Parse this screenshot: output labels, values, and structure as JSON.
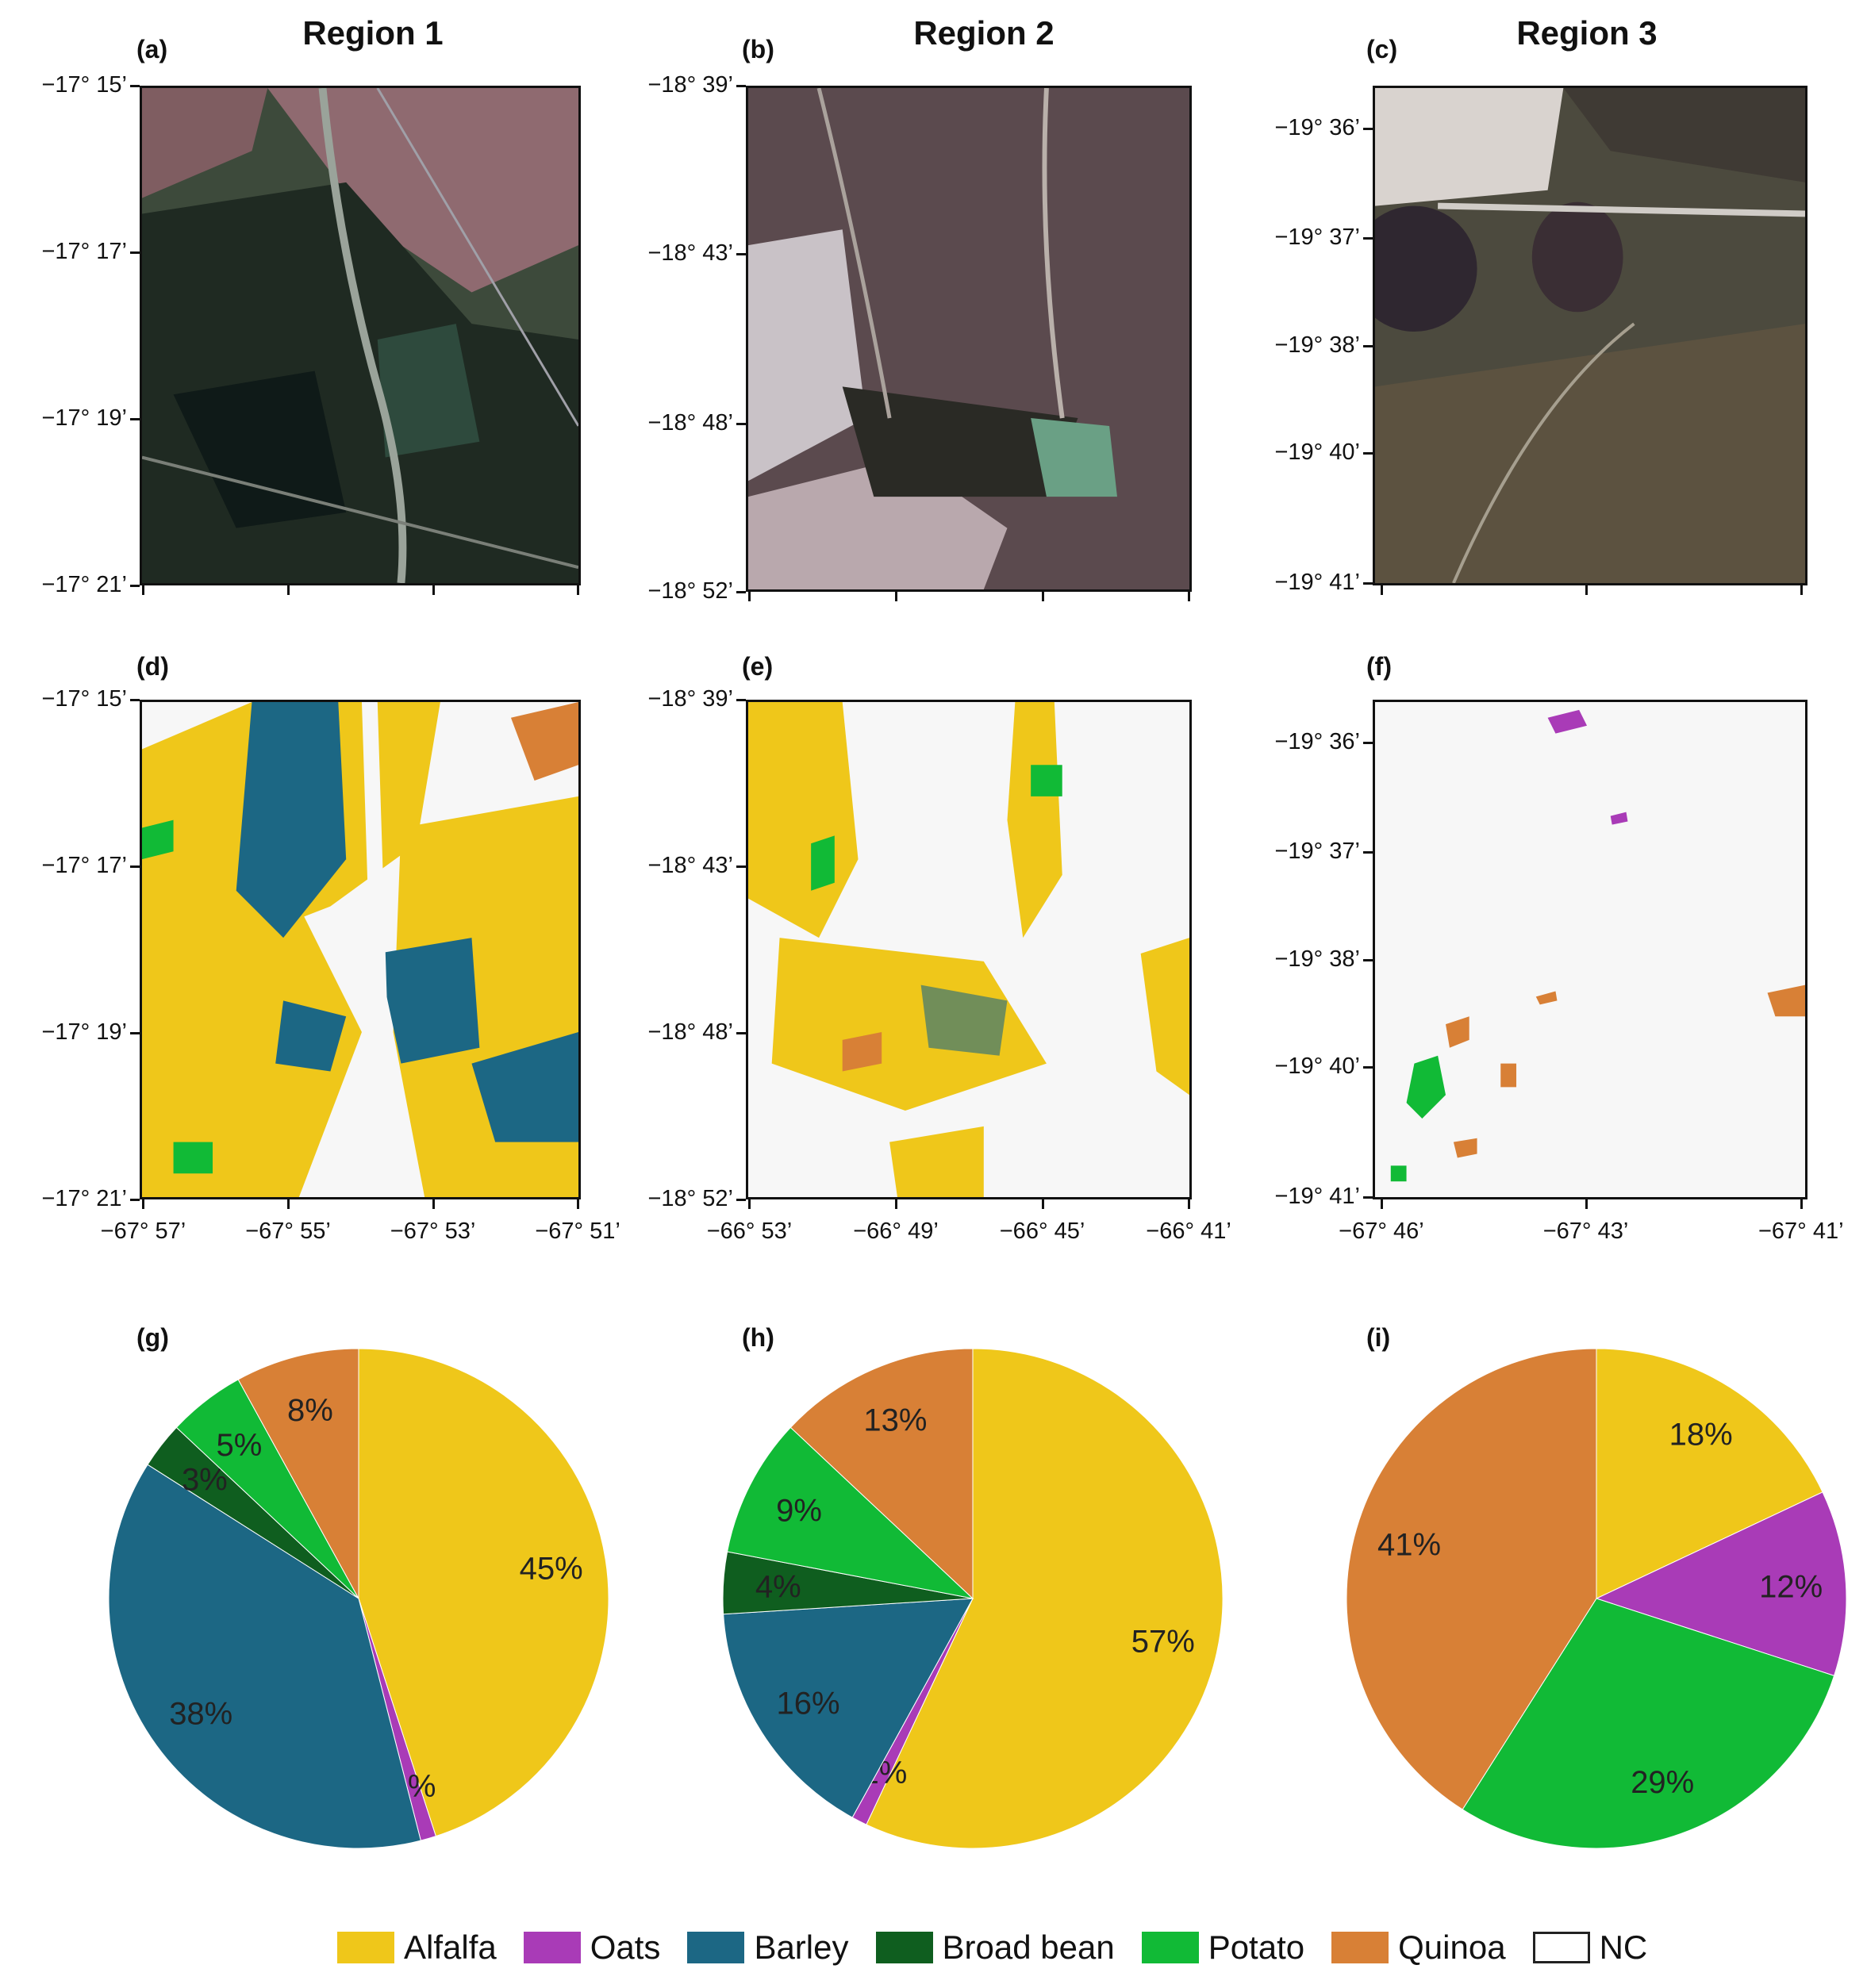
{
  "regions": [
    "Region 1",
    "Region 2",
    "Region 3"
  ],
  "panel_labels": [
    "(a)",
    "(b)",
    "(c)",
    "(d)",
    "(e)",
    "(f)",
    "(g)",
    "(h)",
    "(i)"
  ],
  "maps": [
    {
      "lat_ticks": [
        "−17° 15’",
        "−17° 17’",
        "−17° 19’",
        "−17° 21’"
      ],
      "lon_ticks": [
        "−67° 57’",
        "−67° 55’",
        "−67° 53’",
        "−67° 51’"
      ]
    },
    {
      "lat_ticks": [
        "−18° 39’",
        "−18° 43’",
        "−18° 48’",
        "−18° 52’"
      ],
      "lon_ticks": [
        "−66° 53’",
        "−66° 49’",
        "−66° 45’",
        "−66° 41’"
      ]
    },
    {
      "lat_ticks": [
        "−19° 36’",
        "−19° 37’",
        "−19° 38’",
        "−19° 40’",
        "−19° 41’"
      ],
      "lon_ticks": [
        "−67° 46’",
        "−67° 43’",
        "−67° 41’"
      ]
    }
  ],
  "legend": [
    {
      "name": "Alfalfa",
      "color": "#EFC71A"
    },
    {
      "name": "Oats",
      "color": "#A93BB7"
    },
    {
      "name": "Barley",
      "color": "#1C6784"
    },
    {
      "name": "Broad bean",
      "color": "#0F5E1F"
    },
    {
      "name": "Potato",
      "color": "#11BA36"
    },
    {
      "name": "Quinoa",
      "color": "#D88036"
    },
    {
      "name": "NC",
      "color": "#FFFFFF"
    }
  ],
  "chart_data": [
    {
      "type": "pie",
      "panel": "(g)",
      "region": "Region 1",
      "slices": [
        {
          "name": "Alfalfa",
          "value": 45,
          "label": "45%"
        },
        {
          "name": "Oats",
          "value": 1,
          "label": "1%"
        },
        {
          "name": "Barley",
          "value": 38,
          "label": "38%"
        },
        {
          "name": "Broad bean",
          "value": 3,
          "label": "3%"
        },
        {
          "name": "Potato",
          "value": 5,
          "label": "5%"
        },
        {
          "name": "Quinoa",
          "value": 8,
          "label": "8%"
        }
      ]
    },
    {
      "type": "pie",
      "panel": "(h)",
      "region": "Region 2",
      "slices": [
        {
          "name": "Alfalfa",
          "value": 57,
          "label": "57%"
        },
        {
          "name": "Oats",
          "value": 1,
          "label": "1%"
        },
        {
          "name": "Barley",
          "value": 16,
          "label": "16%"
        },
        {
          "name": "Broad bean",
          "value": 4,
          "label": "4%"
        },
        {
          "name": "Potato",
          "value": 9,
          "label": "9%"
        },
        {
          "name": "Quinoa",
          "value": 13,
          "label": "13%"
        }
      ]
    },
    {
      "type": "pie",
      "panel": "(i)",
      "region": "Region 3",
      "slices": [
        {
          "name": "Alfalfa",
          "value": 18,
          "label": "18%"
        },
        {
          "name": "Oats",
          "value": 12,
          "label": "12%"
        },
        {
          "name": "Potato",
          "value": 29,
          "label": "29%"
        },
        {
          "name": "Quinoa",
          "value": 41,
          "label": "41%"
        }
      ]
    }
  ]
}
